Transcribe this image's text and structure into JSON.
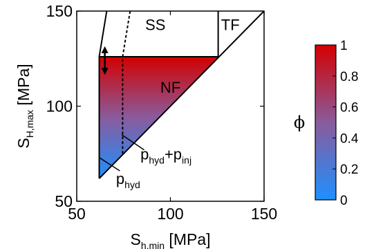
{
  "chart_data": {
    "type": "area",
    "xlabel": {
      "main": "S",
      "sub": "h,min",
      "unit": "[MPa]"
    },
    "ylabel": {
      "main": "S",
      "sub": "H,max",
      "unit": "[MPa]"
    },
    "xlim": [
      50,
      150
    ],
    "ylim": [
      50,
      150
    ],
    "xticks": [
      "50",
      "100",
      "150"
    ],
    "yticks": [
      "50",
      "100",
      "150"
    ],
    "grid": false,
    "regions": [
      {
        "label": "SS",
        "at": [
          92,
          143
        ]
      },
      {
        "label": "TF",
        "at": [
          132,
          143
        ]
      },
      {
        "label": "NF",
        "at": [
          100,
          110
        ]
      }
    ],
    "stress_polygon": {
      "left_boundary": [
        [
          62,
          62
        ],
        [
          62,
          126
        ],
        [
          66,
          150
        ]
      ],
      "diagonal": [
        [
          62,
          62
        ],
        [
          150,
          150
        ]
      ],
      "nf_cap": [
        [
          62,
          126
        ],
        [
          125.5,
          126
        ]
      ],
      "tf_divider": [
        [
          125.5,
          126
        ],
        [
          125.5,
          150
        ]
      ],
      "shifted_boundary": [
        [
          74.5,
          75
        ],
        [
          74.5,
          126
        ],
        [
          78.5,
          150
        ]
      ]
    },
    "nf_fill": {
      "top": 126,
      "colormap_value_top": 1,
      "colormap_value_bottom": 0
    },
    "arrow_y": [
      116.5,
      131.5
    ],
    "annotations": [
      {
        "main": "p",
        "sub": "hyd",
        "pointer_from": [
          62,
          73
        ],
        "pointer_to": [
          73,
          66
        ],
        "text_at": [
          71,
          62
        ]
      },
      {
        "main": "p",
        "sub": "hyd",
        "plus": "+",
        "main2": "p",
        "sub2": "inj",
        "pointer_from": [
          74,
          85
        ],
        "pointer_to": [
          86,
          77
        ],
        "text_at": [
          84,
          75
        ]
      }
    ],
    "colorbar": {
      "label": "ϕ",
      "range": [
        0,
        1
      ],
      "ticks": [
        "0",
        "0.2",
        "0.4",
        "0.6",
        "0.8",
        "1"
      ],
      "colors": [
        "#1e90ff",
        "#d30000"
      ]
    }
  }
}
